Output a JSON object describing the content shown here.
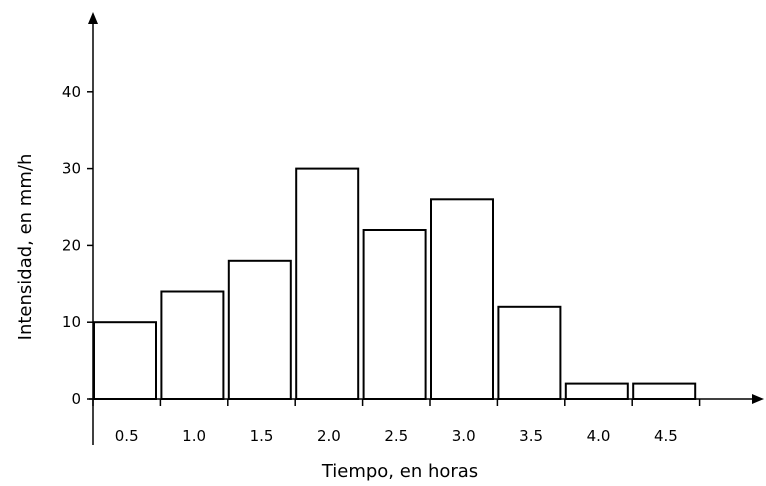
{
  "chart_data": {
    "type": "bar",
    "title": "",
    "xlabel": "Tiempo, en horas",
    "ylabel": "Intensidad, en mm/h",
    "categories": [
      "0.5",
      "1.0",
      "1.5",
      "2.0",
      "2.5",
      "3.0",
      "3.5",
      "4.0",
      "4.5"
    ],
    "values": [
      10,
      14,
      18,
      30,
      22,
      26,
      12,
      2,
      2
    ],
    "yticks": [
      "0",
      "10",
      "20",
      "30",
      "40"
    ],
    "ylim": [
      0,
      50
    ],
    "grid": false,
    "legend": "none",
    "bar_fill": "#ffffff",
    "bar_stroke": "#000000"
  }
}
